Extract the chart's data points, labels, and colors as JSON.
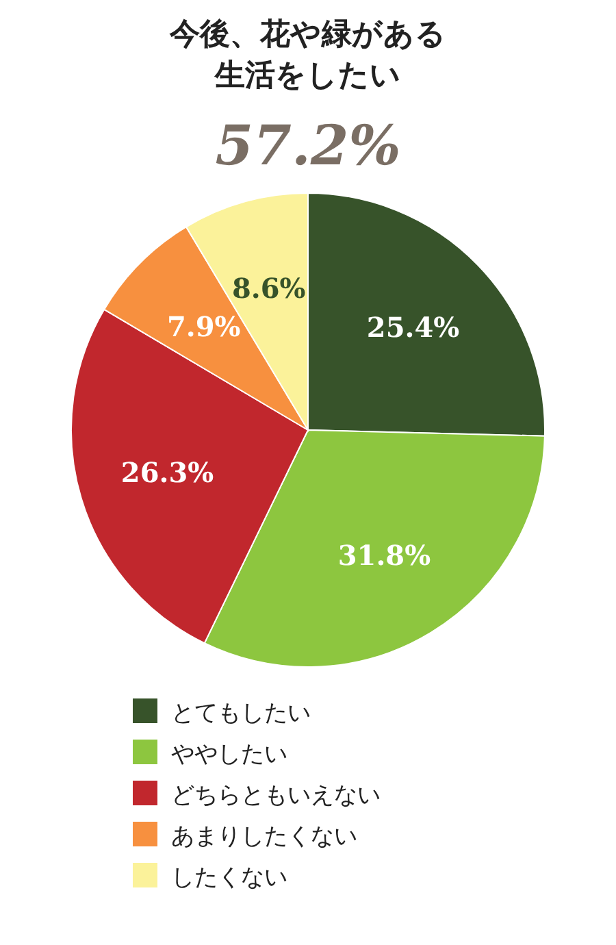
{
  "chart_data": {
    "type": "pie",
    "title": "今後、花や緑がある生活をしたい",
    "subtitle": "57.2%",
    "categories": [
      "とてもしたい",
      "ややしたい",
      "どちらともいえない",
      "あまりしたくない",
      "したくない"
    ],
    "values": [
      25.4,
      31.8,
      26.3,
      7.9,
      8.6
    ],
    "colors": [
      "#37532a",
      "#8dc63f",
      "#c1272d",
      "#f7903f",
      "#fbf29a"
    ],
    "value_labels": [
      "25.4%",
      "31.8%",
      "26.3%",
      "7.9%",
      "8.6%"
    ],
    "legend": "bottom"
  }
}
